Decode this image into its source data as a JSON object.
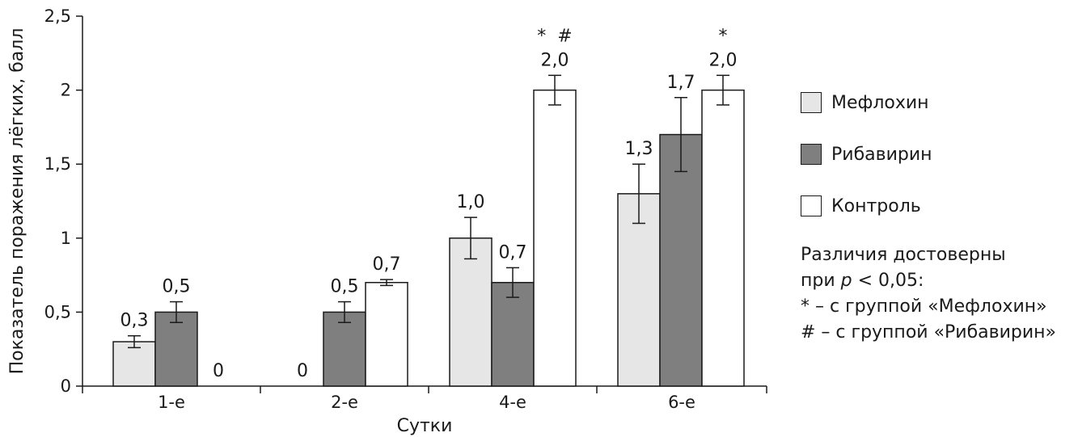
{
  "chart_data": {
    "type": "bar",
    "ylabel": "Показатель поражения лёгких, балл",
    "xlabel": "Сутки",
    "ylim": [
      0,
      2.5
    ],
    "yticks": [
      {
        "value": 0,
        "label": "0"
      },
      {
        "value": 0.5,
        "label": "0,5"
      },
      {
        "value": 1,
        "label": "1"
      },
      {
        "value": 1.5,
        "label": "1,5"
      },
      {
        "value": 2,
        "label": "2"
      },
      {
        "value": 2.5,
        "label": "2,5"
      }
    ],
    "categories": [
      "1-е",
      "2-е",
      "4-е",
      "6-е"
    ],
    "series": [
      {
        "name": "Мефлохин",
        "color": "#e6e6e6",
        "values": [
          0.3,
          0,
          1.0,
          1.3
        ],
        "errors": [
          0.04,
          null,
          0.14,
          0.2
        ],
        "labels": [
          "0,3",
          "0",
          "1,0",
          "1,3"
        ]
      },
      {
        "name": "Рибавирин",
        "color": "#7f7f7f",
        "values": [
          0.5,
          0.5,
          0.7,
          1.7
        ],
        "errors": [
          0.07,
          0.07,
          0.1,
          0.25
        ],
        "labels": [
          "0,5",
          "0,5",
          "0,7",
          "1,7"
        ]
      },
      {
        "name": "Контроль",
        "color": "#ffffff",
        "values": [
          0,
          0.7,
          2.0,
          2.0
        ],
        "errors": [
          null,
          0.02,
          0.1,
          0.1
        ],
        "labels": [
          "0",
          "0,7",
          "2,0",
          "2,0"
        ],
        "significance": [
          "",
          "",
          "*  #",
          "*"
        ]
      }
    ]
  },
  "note": {
    "line1": "Различия достоверны",
    "line2_prefix": "при ",
    "line2_p": "p",
    "line2_suffix": " < 0,05:",
    "line3": "* – с группой «Мефлохин»",
    "line4": "# – с группой «Рибавирин»"
  }
}
